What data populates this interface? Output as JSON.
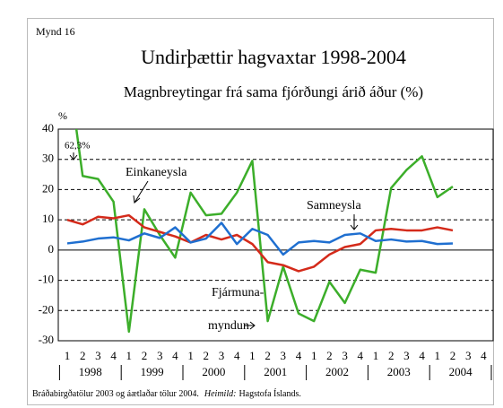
{
  "chart_data": {
    "type": "line",
    "label": "Mynd 16",
    "title": "Undirþættir hagvaxtar 1998-2004",
    "subtitle": "Magnbreytingar frá sama fjórðungi árið áður (%)",
    "y_unit": "%",
    "categories": [
      "1",
      "2",
      "3",
      "4",
      "1",
      "2",
      "3",
      "4",
      "1",
      "2",
      "3",
      "4",
      "1",
      "2",
      "3",
      "4",
      "1",
      "2",
      "3",
      "4",
      "1",
      "2",
      "3",
      "4",
      "1",
      "2",
      "3",
      "4"
    ],
    "years": [
      "1998",
      "1999",
      "2000",
      "2001",
      "2002",
      "2003",
      "2004"
    ],
    "series": [
      {
        "name": "Fjármunamyndun",
        "color": "#3cae2a",
        "values": [
          62.3,
          24.5,
          23.5,
          16,
          -27,
          13.5,
          5,
          -2.5,
          19,
          11.5,
          12,
          19,
          29.5,
          -23.5,
          -5.5,
          -21,
          -23.5,
          -10.5,
          -17.5,
          -6.5,
          -7.5,
          20.5,
          26.5,
          31,
          17.5,
          21,
          null,
          null
        ]
      },
      {
        "name": "Einkaneysla",
        "color": "#d42a1a",
        "values": [
          10,
          8.5,
          11,
          10.5,
          11.5,
          7.5,
          6,
          4.5,
          2.5,
          5,
          3.5,
          5,
          2,
          -4,
          -5,
          -7,
          -5.5,
          -1.5,
          1,
          2,
          6.5,
          7,
          6.5,
          6.5,
          7.5,
          6.5,
          null,
          null
        ]
      },
      {
        "name": "Samneysla",
        "color": "#1f6fd0",
        "values": [
          2.2,
          2.8,
          3.8,
          4.2,
          3.2,
          5.5,
          4,
          7.5,
          2.5,
          3.8,
          9,
          2,
          7,
          5,
          -1.5,
          2.5,
          3,
          2.5,
          5,
          5.5,
          3,
          3.5,
          2.8,
          3,
          2,
          2.2,
          null,
          null
        ]
      }
    ],
    "annotations": {
      "peak": "62,3%",
      "einka": "Einkaneysla",
      "sam": "Samneysla",
      "fjar1": "Fjármuna-",
      "fjar2": "myndun"
    },
    "footnote": {
      "text": "Bráðabirgðatölur 2003 og áætlaðar tölur 2004.",
      "source_label": "Heimild:",
      "source": "Hagstofa Íslands."
    },
    "ylim": [
      -30,
      40
    ],
    "yticks": [
      -30,
      -20,
      -10,
      0,
      10,
      20,
      30,
      40
    ],
    "grid": true
  }
}
